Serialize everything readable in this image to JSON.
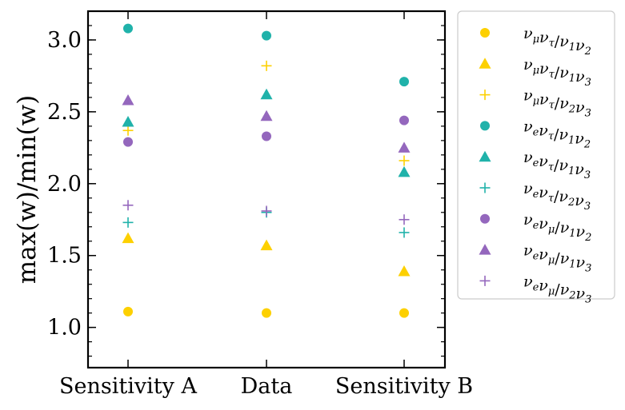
{
  "chart_data": {
    "type": "scatter",
    "title": "",
    "xlabel": "",
    "ylabel": "max(w)/min(w)",
    "ylim": [
      0.72,
      3.2
    ],
    "yticks": [
      "1.0",
      "1.5",
      "2.0",
      "2.5",
      "3.0"
    ],
    "categories": [
      "Sensitivity A",
      "Data",
      "Sensitivity B"
    ],
    "legend_position": "outside-right",
    "series": [
      {
        "name": "νμντ/ν1ν2",
        "label_main": "ν",
        "label_parts": [
          [
            "ν",
            "μ"
          ],
          [
            "ν",
            "τ"
          ],
          [
            "/",
            ""
          ],
          [
            "ν",
            "1"
          ],
          [
            "ν",
            "2"
          ]
        ],
        "color": "#FDD000",
        "marker": "circle",
        "values": [
          1.11,
          1.1,
          1.1
        ]
      },
      {
        "name": "νμντ/ν1ν3",
        "label_parts": [
          [
            "ν",
            "μ"
          ],
          [
            "ν",
            "τ"
          ],
          [
            "/",
            ""
          ],
          [
            "ν",
            "1"
          ],
          [
            "ν",
            "3"
          ]
        ],
        "color": "#FDD000",
        "marker": "triangle",
        "values": [
          1.62,
          1.57,
          1.39
        ]
      },
      {
        "name": "νμντ/ν2ν3",
        "label_parts": [
          [
            "ν",
            "μ"
          ],
          [
            "ν",
            "τ"
          ],
          [
            "/",
            ""
          ],
          [
            "ν",
            "2"
          ],
          [
            "ν",
            "3"
          ]
        ],
        "color": "#FDD000",
        "marker": "plus",
        "values": [
          2.37,
          2.82,
          2.16
        ]
      },
      {
        "name": "νeντ/ν1ν2",
        "label_parts": [
          [
            "ν",
            "e"
          ],
          [
            "ν",
            "τ"
          ],
          [
            "/",
            ""
          ],
          [
            "ν",
            "1"
          ],
          [
            "ν",
            "2"
          ]
        ],
        "color": "#20B2AA",
        "marker": "circle",
        "values": [
          3.08,
          3.03,
          2.71
        ]
      },
      {
        "name": "νeντ/ν1ν3",
        "label_parts": [
          [
            "ν",
            "e"
          ],
          [
            "ν",
            "τ"
          ],
          [
            "/",
            ""
          ],
          [
            "ν",
            "1"
          ],
          [
            "ν",
            "3"
          ]
        ],
        "color": "#20B2AA",
        "marker": "triangle",
        "values": [
          2.43,
          2.62,
          2.08
        ]
      },
      {
        "name": "νeντ/ν2ν3",
        "label_parts": [
          [
            "ν",
            "e"
          ],
          [
            "ν",
            "τ"
          ],
          [
            "/",
            ""
          ],
          [
            "ν",
            "2"
          ],
          [
            "ν",
            "3"
          ]
        ],
        "color": "#20B2AA",
        "marker": "plus",
        "values": [
          1.73,
          1.8,
          1.66
        ]
      },
      {
        "name": "νeνμ/ν1ν2",
        "label_parts": [
          [
            "ν",
            "e"
          ],
          [
            "ν",
            "μ"
          ],
          [
            "/",
            ""
          ],
          [
            "ν",
            "1"
          ],
          [
            "ν",
            "2"
          ]
        ],
        "color": "#9467BD",
        "marker": "circle",
        "values": [
          2.29,
          2.33,
          2.44
        ]
      },
      {
        "name": "νeνμ/ν1ν3",
        "label_parts": [
          [
            "ν",
            "e"
          ],
          [
            "ν",
            "μ"
          ],
          [
            "/",
            ""
          ],
          [
            "ν",
            "1"
          ],
          [
            "ν",
            "3"
          ]
        ],
        "color": "#9467BD",
        "marker": "triangle",
        "values": [
          2.58,
          2.47,
          2.25
        ]
      },
      {
        "name": "νeνμ/ν2ν3",
        "label_parts": [
          [
            "ν",
            "e"
          ],
          [
            "ν",
            "μ"
          ],
          [
            "/",
            ""
          ],
          [
            "ν",
            "2"
          ],
          [
            "ν",
            "3"
          ]
        ],
        "color": "#9467BD",
        "marker": "plus",
        "values": [
          1.85,
          1.81,
          1.75
        ]
      }
    ]
  }
}
